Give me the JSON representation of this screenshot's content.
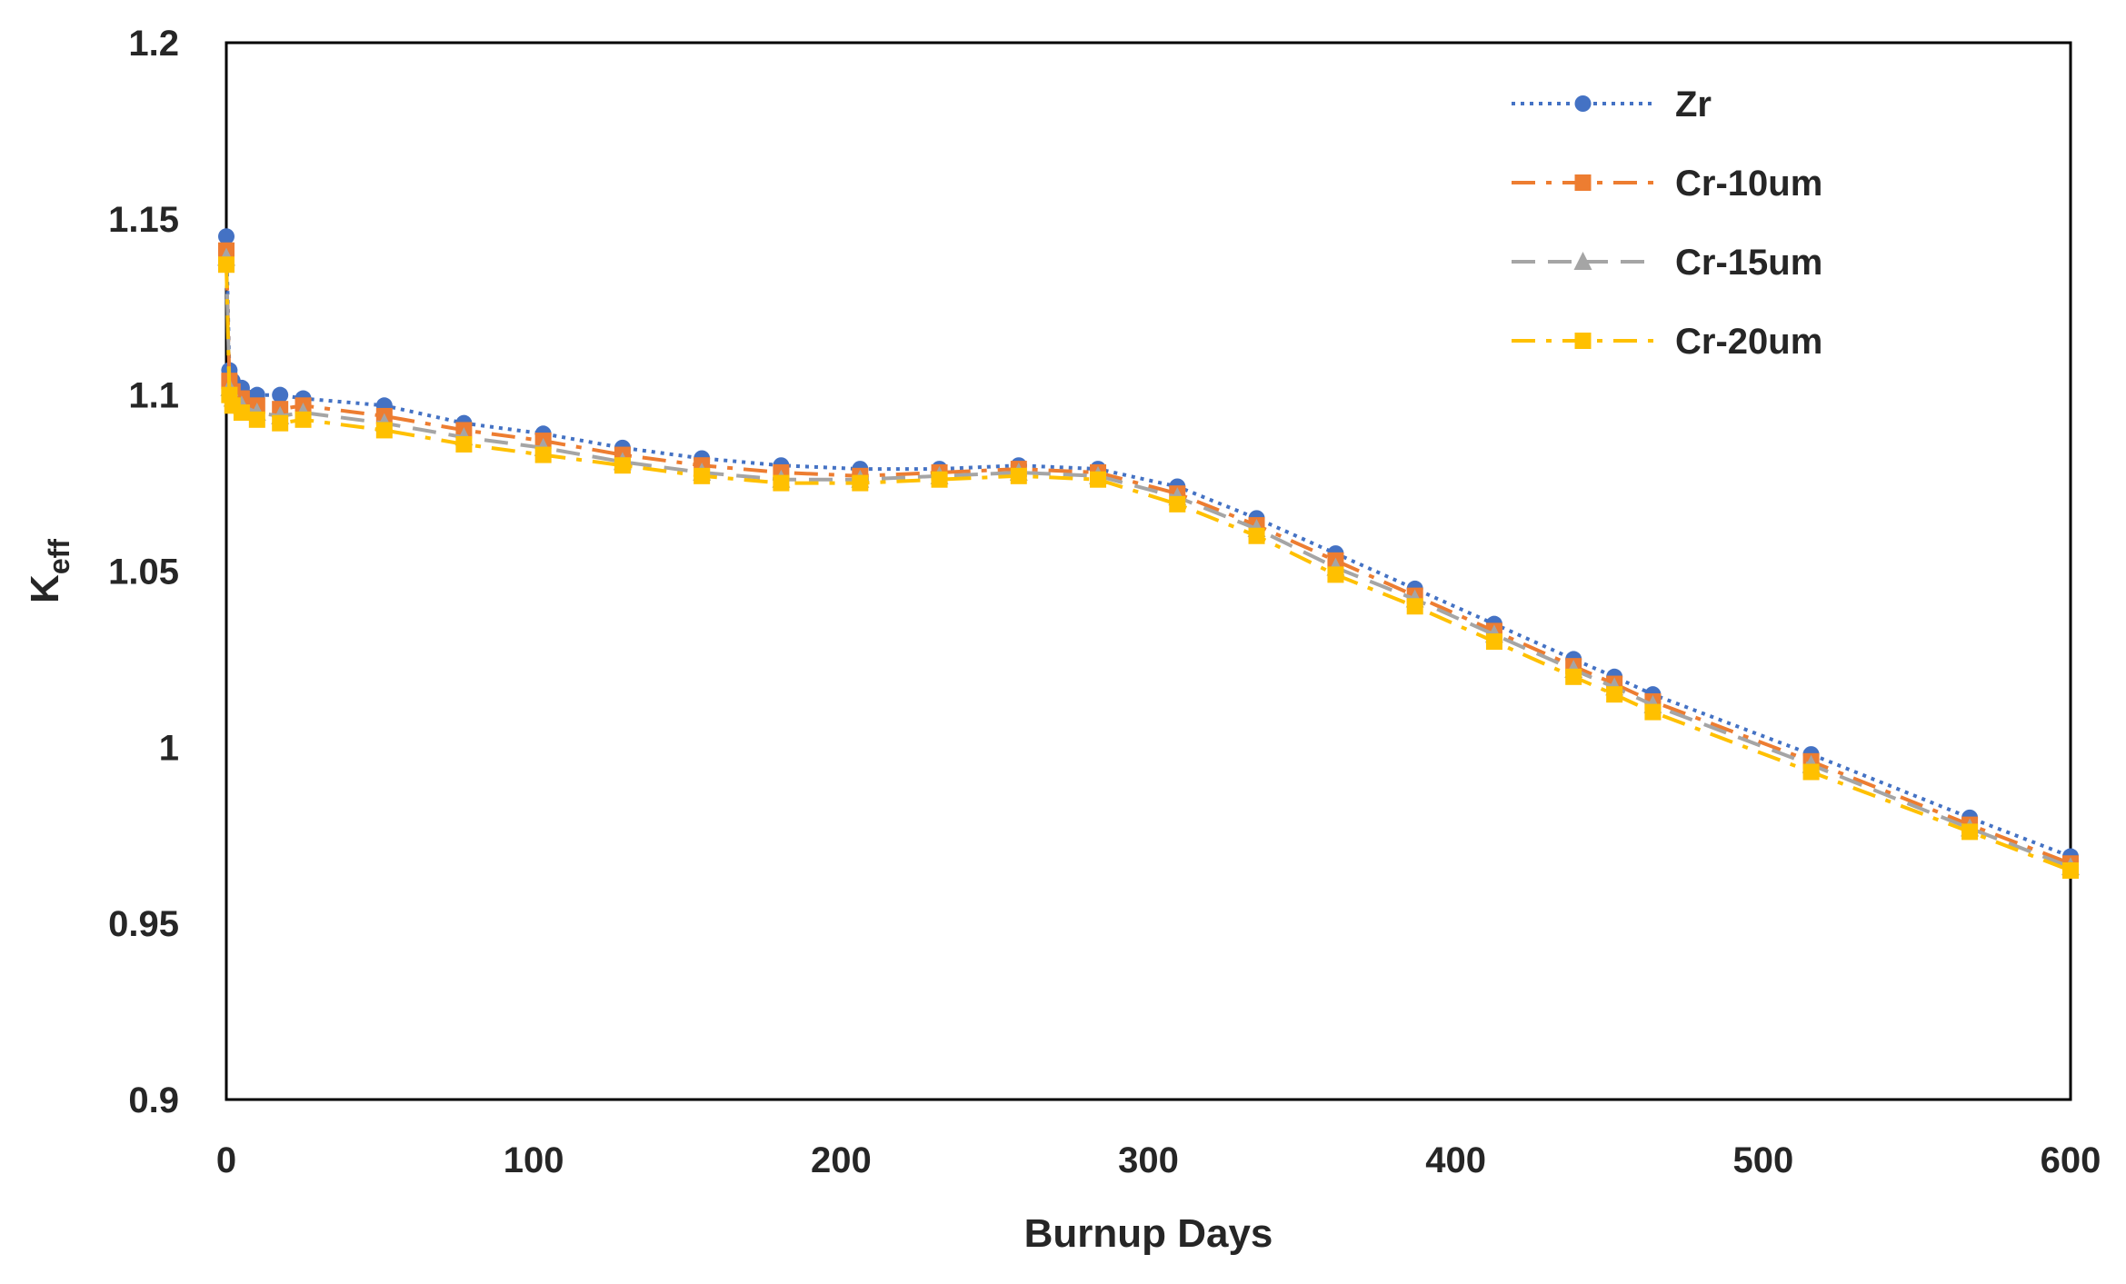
{
  "chart_data": {
    "type": "line",
    "title": "",
    "xlabel": "Burnup Days",
    "ylabel": "K",
    "ylabel_subscript": "eff",
    "xlim": [
      0,
      600
    ],
    "ylim": [
      0.9,
      1.2
    ],
    "xticks": [
      0,
      100,
      200,
      300,
      400,
      500,
      600
    ],
    "xtick_labels": [
      "0",
      "100",
      "200",
      "300",
      "400",
      "500",
      "600"
    ],
    "yticks": [
      0.9,
      0.95,
      1.0,
      1.05,
      1.1,
      1.15,
      1.2
    ],
    "ytick_labels": [
      "0.9",
      "0.95",
      "1",
      "1.05",
      "1.1",
      "1.15",
      "1.2"
    ],
    "grid": false,
    "legend_position": "top-right",
    "x": [
      0,
      1,
      2,
      5,
      10,
      17.5,
      25,
      51.4,
      77.3,
      103.1,
      128.9,
      154.7,
      180.5,
      206.2,
      232,
      257.8,
      283.6,
      309.4,
      335.2,
      360.9,
      386.7,
      412.5,
      438.3,
      451.6,
      464.1,
      515.6,
      567.2,
      600
    ],
    "series": [
      {
        "name": "Zr",
        "color": "#4472C4",
        "line_style": "dotted",
        "marker": "circle",
        "values": [
          1.145,
          1.107,
          1.104,
          1.102,
          1.1,
          1.1,
          1.099,
          1.097,
          1.092,
          1.089,
          1.085,
          1.082,
          1.08,
          1.079,
          1.079,
          1.08,
          1.079,
          1.074,
          1.065,
          1.055,
          1.045,
          1.035,
          1.025,
          1.02,
          1.015,
          0.998,
          0.98,
          0.969
        ]
      },
      {
        "name": "Cr-10um",
        "color": "#ED7D31",
        "line_style": "dash-dot",
        "marker": "square",
        "values": [
          1.141,
          1.104,
          1.101,
          1.099,
          1.097,
          1.096,
          1.097,
          1.094,
          1.09,
          1.087,
          1.083,
          1.08,
          1.078,
          1.077,
          1.078,
          1.079,
          1.078,
          1.072,
          1.063,
          1.053,
          1.043,
          1.033,
          1.023,
          1.018,
          1.013,
          0.996,
          0.978,
          0.967
        ]
      },
      {
        "name": "Cr-15um",
        "color": "#A5A5A5",
        "line_style": "dashed",
        "marker": "triangle",
        "values": [
          1.139,
          1.102,
          1.099,
          1.097,
          1.095,
          1.094,
          1.095,
          1.092,
          1.088,
          1.085,
          1.081,
          1.078,
          1.076,
          1.076,
          1.077,
          1.078,
          1.077,
          1.071,
          1.062,
          1.051,
          1.042,
          1.032,
          1.022,
          1.017,
          1.012,
          0.995,
          0.977,
          0.966
        ]
      },
      {
        "name": "Cr-20um",
        "color": "#FFC000",
        "line_style": "dash-dot",
        "marker": "square",
        "values": [
          1.137,
          1.1,
          1.097,
          1.095,
          1.093,
          1.092,
          1.093,
          1.09,
          1.086,
          1.083,
          1.08,
          1.077,
          1.075,
          1.075,
          1.076,
          1.077,
          1.076,
          1.069,
          1.06,
          1.049,
          1.04,
          1.03,
          1.02,
          1.015,
          1.01,
          0.993,
          0.976,
          0.965
        ]
      }
    ]
  }
}
